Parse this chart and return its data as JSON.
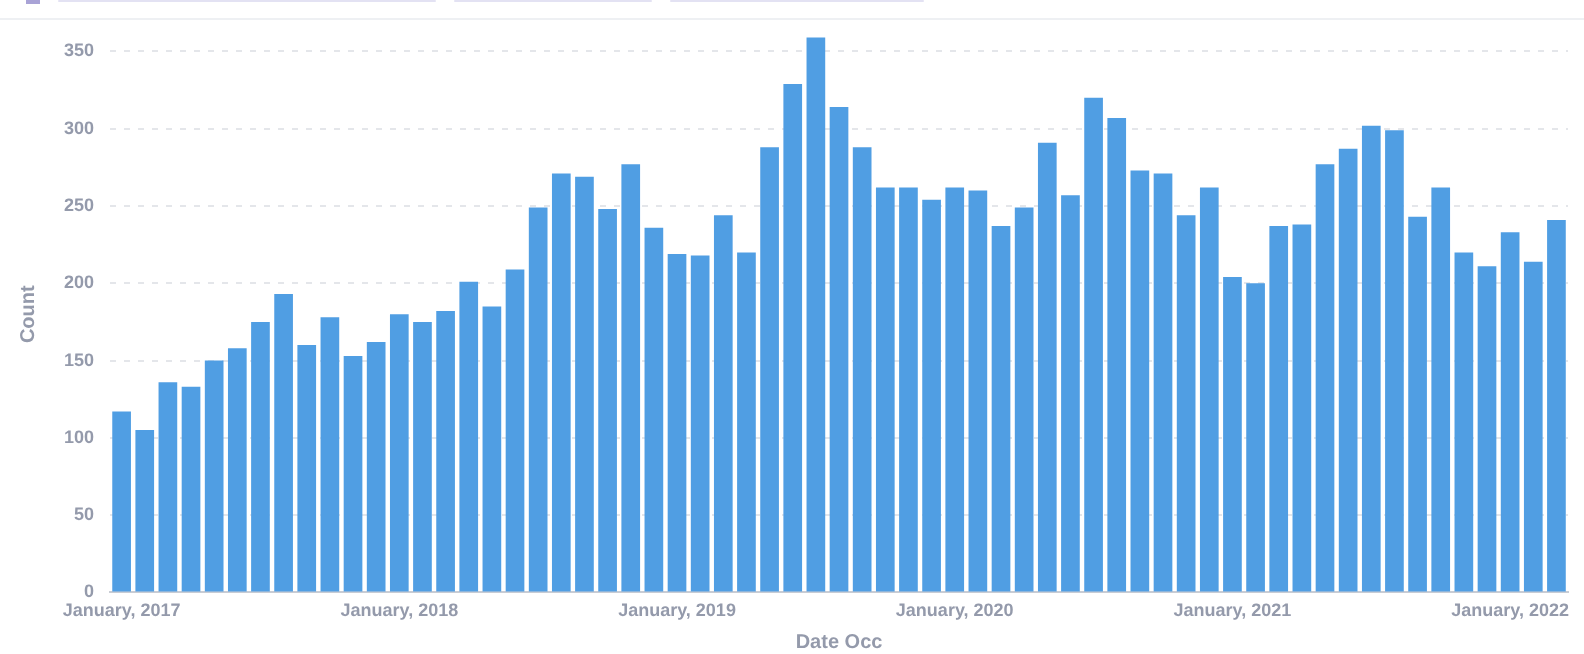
{
  "chart_data": {
    "type": "bar",
    "xlabel": "Date Occ",
    "ylabel": "Count",
    "categories": [
      "January, 2017",
      null,
      null,
      null,
      null,
      null,
      null,
      null,
      null,
      null,
      null,
      null,
      "January, 2018",
      null,
      null,
      null,
      null,
      null,
      null,
      null,
      null,
      null,
      null,
      null,
      "January, 2019",
      null,
      null,
      null,
      null,
      null,
      null,
      null,
      null,
      null,
      null,
      null,
      "January, 2020",
      null,
      null,
      null,
      null,
      null,
      null,
      null,
      null,
      null,
      null,
      null,
      "January, 2021",
      null,
      null,
      null,
      null,
      null,
      null,
      null,
      null,
      null,
      null,
      null,
      "January, 2022",
      null,
      null
    ],
    "values": [
      117,
      105,
      136,
      133,
      150,
      158,
      175,
      193,
      160,
      178,
      153,
      162,
      180,
      175,
      182,
      201,
      185,
      209,
      249,
      271,
      269,
      248,
      277,
      236,
      219,
      218,
      244,
      220,
      288,
      329,
      359,
      314,
      288,
      262,
      262,
      254,
      262,
      260,
      237,
      249,
      291,
      257,
      320,
      307,
      273,
      271,
      244,
      262,
      204,
      200,
      237,
      238,
      277,
      287,
      302,
      299,
      243,
      262,
      220,
      211,
      233,
      214,
      241
    ],
    "color": "#509ee3",
    "ylim": [
      0,
      360
    ],
    "yticks": [
      0,
      50,
      100,
      150,
      200,
      250,
      300,
      350
    ],
    "grid": "y",
    "legend": false
  }
}
